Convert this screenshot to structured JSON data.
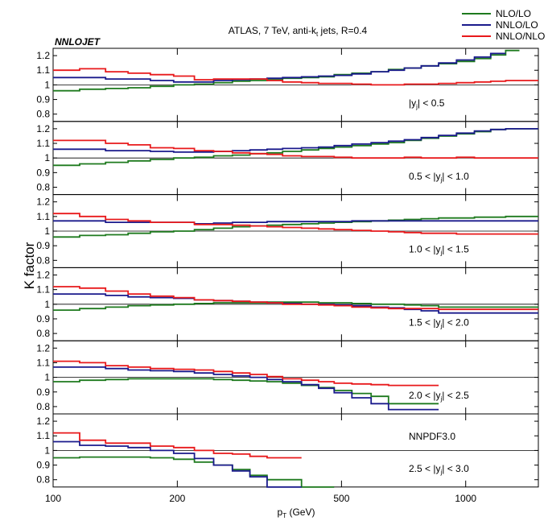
{
  "chart_data": {
    "type": "line",
    "title": "ATLAS, 7 TeV, anti-k",
    "title_sub": "t",
    "title_suffix": " jets, R=0.4",
    "tag": "NNLOJET",
    "xlabel": "p",
    "xlabel_sub": "T",
    "xlabel_suffix": " (GeV)",
    "ylabel": "K factor",
    "xscale": "log",
    "xlim": [
      100,
      1500
    ],
    "ylim": [
      0.75,
      1.25
    ],
    "x_ticks": [
      "100",
      "200",
      "500",
      "1000"
    ],
    "x_tick_values": [
      100,
      200,
      500,
      1000
    ],
    "y_ticks": [
      "0.8",
      "0.9",
      "1",
      "1.1",
      "1.2"
    ],
    "y_tick_values": [
      0.8,
      0.9,
      1.0,
      1.1,
      1.2
    ],
    "legend_position": "top-right",
    "series": [
      {
        "name": "NLO/LO",
        "color": "#1e7a1e"
      },
      {
        "name": "NNLO/LO",
        "color": "#1a1a8c"
      },
      {
        "name": "NNLO/NLO",
        "color": "#e8191b"
      }
    ],
    "panels": [
      {
        "label_pre": "|y",
        "label_sub": "j",
        "label_post": "| < 0.5",
        "note": "",
        "edges": [
          100,
          116,
          134,
          152,
          172,
          196,
          220,
          245,
          272,
          300,
          330,
          360,
          400,
          440,
          480,
          530,
          590,
          650,
          710,
          780,
          860,
          950,
          1050,
          1150,
          1250,
          1350,
          1500
        ],
        "curves": [
          [
            0.96,
            0.97,
            0.975,
            0.98,
            0.99,
            1.0,
            1.005,
            1.015,
            1.025,
            1.03,
            1.035,
            1.045,
            1.05,
            1.055,
            1.07,
            1.08,
            1.09,
            1.105,
            1.115,
            1.13,
            1.145,
            1.16,
            1.18,
            1.205,
            1.235,
            null
          ],
          [
            1.05,
            1.05,
            1.04,
            1.04,
            1.03,
            1.02,
            1.02,
            1.03,
            1.035,
            1.04,
            1.045,
            1.05,
            1.055,
            1.06,
            1.065,
            1.075,
            1.09,
            1.1,
            1.115,
            1.13,
            1.15,
            1.17,
            1.19,
            1.215,
            null,
            null
          ],
          [
            1.1,
            1.11,
            1.09,
            1.08,
            1.07,
            1.06,
            1.035,
            1.04,
            1.04,
            1.04,
            1.03,
            1.02,
            1.015,
            1.01,
            1.01,
            1.005,
            1.0,
            1.0,
            1.005,
            1.005,
            1.01,
            1.015,
            1.02,
            1.025,
            1.03,
            1.03
          ]
        ]
      },
      {
        "label_pre": "0.5 < |y",
        "label_sub": "j",
        "label_post": "| < 1.0",
        "note": "",
        "edges": [
          100,
          116,
          134,
          152,
          172,
          196,
          220,
          245,
          272,
          300,
          330,
          360,
          400,
          440,
          480,
          530,
          590,
          650,
          710,
          780,
          860,
          950,
          1050,
          1150,
          1250,
          1350,
          1500
        ],
        "curves": [
          [
            0.95,
            0.96,
            0.97,
            0.98,
            0.99,
            1.0,
            1.005,
            1.015,
            1.02,
            1.03,
            1.035,
            1.045,
            1.055,
            1.065,
            1.075,
            1.085,
            1.095,
            1.105,
            1.12,
            1.135,
            1.15,
            1.165,
            1.18,
            1.195,
            1.2,
            1.2
          ],
          [
            1.06,
            1.06,
            1.05,
            1.05,
            1.045,
            1.04,
            1.04,
            1.045,
            1.05,
            1.055,
            1.06,
            1.065,
            1.07,
            1.075,
            1.085,
            1.095,
            1.105,
            1.115,
            1.125,
            1.14,
            1.155,
            1.17,
            1.185,
            1.195,
            1.2,
            1.2
          ],
          [
            1.12,
            1.12,
            1.1,
            1.09,
            1.07,
            1.065,
            1.05,
            1.045,
            1.035,
            1.03,
            1.025,
            1.015,
            1.01,
            1.01,
            1.005,
            1.0,
            1.0,
            1.0,
            1.005,
            1.0,
            1.0,
            1.005,
            1.0,
            1.0,
            1.0,
            1.0
          ]
        ]
      },
      {
        "label_pre": "1.0 < |y",
        "label_sub": "j",
        "label_post": "| < 1.5",
        "note": "",
        "edges": [
          100,
          116,
          134,
          152,
          172,
          196,
          220,
          245,
          272,
          300,
          330,
          360,
          400,
          440,
          480,
          530,
          590,
          650,
          710,
          780,
          860,
          950,
          1050,
          1150,
          1250,
          1350,
          1500
        ],
        "curves": [
          [
            0.96,
            0.97,
            0.975,
            0.985,
            0.995,
            1.0,
            1.01,
            1.02,
            1.03,
            1.035,
            1.04,
            1.045,
            1.05,
            1.055,
            1.06,
            1.065,
            1.07,
            1.075,
            1.08,
            1.085,
            1.09,
            1.09,
            1.095,
            1.095,
            1.1,
            1.1
          ],
          [
            1.07,
            1.07,
            1.06,
            1.06,
            1.06,
            1.06,
            1.05,
            1.055,
            1.06,
            1.06,
            1.065,
            1.065,
            1.065,
            1.065,
            1.065,
            1.07,
            1.07,
            1.07,
            1.07,
            1.07,
            1.07,
            1.07,
            1.07,
            1.07,
            1.07,
            1.07
          ],
          [
            1.12,
            1.1,
            1.08,
            1.07,
            1.06,
            1.06,
            1.045,
            1.045,
            1.04,
            1.035,
            1.03,
            1.025,
            1.02,
            1.015,
            1.01,
            1.005,
            1.0,
            0.995,
            0.99,
            0.985,
            0.985,
            0.98,
            0.98,
            0.98,
            0.98,
            0.98
          ]
        ]
      },
      {
        "label_pre": "1.5 < |y",
        "label_sub": "j",
        "label_post": "| < 2.0",
        "note": "",
        "edges": [
          100,
          116,
          134,
          152,
          172,
          196,
          220,
          245,
          272,
          300,
          330,
          360,
          400,
          440,
          480,
          530,
          590,
          650,
          710,
          780,
          860,
          1500
        ],
        "curves": [
          [
            0.96,
            0.97,
            0.98,
            0.99,
            0.995,
            1.0,
            1.005,
            1.01,
            1.01,
            1.01,
            1.015,
            1.015,
            1.015,
            1.01,
            1.01,
            1.005,
            1.0,
            1.0,
            0.995,
            0.99,
            0.98
          ],
          [
            1.07,
            1.07,
            1.06,
            1.05,
            1.045,
            1.04,
            1.03,
            1.025,
            1.02,
            1.015,
            1.01,
            1.005,
            1.0,
            1.0,
            0.995,
            0.99,
            0.98,
            0.975,
            0.965,
            0.955,
            0.94
          ],
          [
            1.12,
            1.11,
            1.09,
            1.07,
            1.055,
            1.045,
            1.03,
            1.025,
            1.02,
            1.015,
            1.01,
            1.0,
            1.0,
            0.995,
            0.99,
            0.98,
            0.975,
            0.97,
            0.97,
            0.97,
            0.965
          ]
        ]
      },
      {
        "label_pre": "2.0 < |y",
        "label_sub": "j",
        "label_post": "| < 2.5",
        "note": "",
        "edges": [
          100,
          116,
          134,
          152,
          172,
          196,
          220,
          245,
          272,
          300,
          330,
          360,
          400,
          440,
          480,
          530,
          590,
          650,
          860
        ],
        "curves": [
          [
            0.97,
            0.98,
            0.985,
            0.99,
            0.99,
            0.99,
            0.99,
            0.985,
            0.98,
            0.975,
            0.97,
            0.96,
            0.945,
            0.93,
            0.91,
            0.89,
            0.87,
            0.82
          ],
          [
            1.07,
            1.07,
            1.06,
            1.05,
            1.045,
            1.04,
            1.03,
            1.02,
            1.01,
            1.0,
            0.985,
            0.97,
            0.95,
            0.925,
            0.895,
            0.86,
            0.82,
            0.78
          ],
          [
            1.11,
            1.1,
            1.08,
            1.07,
            1.06,
            1.055,
            1.05,
            1.04,
            1.03,
            1.02,
            1.005,
            0.99,
            0.98,
            0.97,
            0.96,
            0.955,
            0.95,
            0.945
          ]
        ]
      },
      {
        "label_pre": "2.5 < |y",
        "label_sub": "j",
        "label_post": "| < 3.0",
        "note": "NNPDF3.0",
        "edges": [
          100,
          116,
          134,
          152,
          172,
          196,
          220,
          245,
          272,
          300,
          330,
          400,
          480
        ],
        "curves": [
          [
            0.95,
            0.955,
            0.955,
            0.955,
            0.95,
            0.94,
            0.92,
            0.9,
            0.87,
            0.83,
            0.8,
            0.75
          ],
          [
            1.06,
            1.035,
            1.03,
            1.02,
            1.0,
            0.98,
            0.945,
            0.9,
            0.86,
            0.82,
            0.75,
            null
          ],
          [
            1.12,
            1.07,
            1.05,
            1.05,
            1.03,
            1.02,
            1.0,
            0.98,
            0.975,
            0.96,
            0.95,
            null
          ]
        ]
      }
    ]
  }
}
